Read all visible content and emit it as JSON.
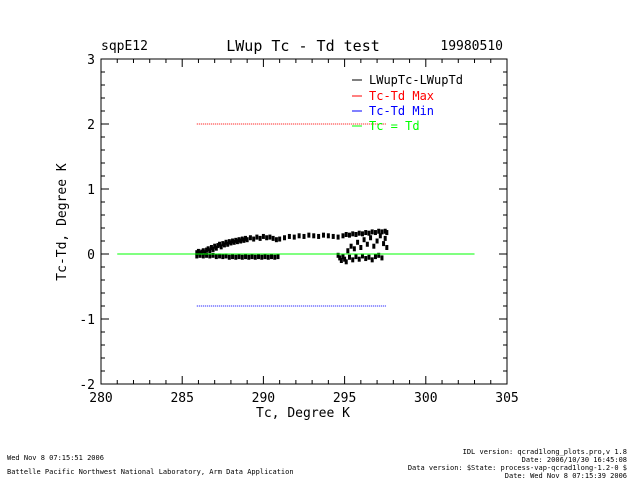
{
  "header": {
    "site": "sqpE12",
    "date": "19980510"
  },
  "chart_data": {
    "type": "scatter",
    "title": "LWup Tc - Td test",
    "xlabel": "Tc, Degree K",
    "ylabel": "Tc-Td, Degree K",
    "xlim": [
      280,
      305
    ],
    "ylim": [
      -2,
      3
    ],
    "x_ticks": [
      280,
      285,
      290,
      295,
      300,
      305
    ],
    "y_ticks": [
      -2,
      -1,
      0,
      1,
      2,
      3
    ],
    "colors": {
      "data": "#000000",
      "max": "#ff0000",
      "min": "#0000ff",
      "zero": "#00ff00"
    },
    "legend": {
      "placement": "top-right",
      "entries": [
        {
          "label": "LWupTc-LWupTd",
          "color": "#000000"
        },
        {
          "label": "Tc-Td Max",
          "color": "#ff0000"
        },
        {
          "label": "Tc-Td Min",
          "color": "#0000ff"
        },
        {
          "label": "Tc = Td",
          "color": "#00ff00"
        }
      ]
    },
    "series": [
      {
        "name": "LWupTc-LWupTd",
        "style": "points",
        "color": "#000000",
        "points": [
          [
            285.9,
            0.02
          ],
          [
            286.0,
            0.04
          ],
          [
            286.1,
            0.01
          ],
          [
            286.2,
            0.03
          ],
          [
            286.3,
            0.05
          ],
          [
            286.4,
            0.02
          ],
          [
            286.5,
            0.06
          ],
          [
            286.6,
            0.08
          ],
          [
            286.7,
            0.05
          ],
          [
            286.8,
            0.1
          ],
          [
            286.9,
            0.07
          ],
          [
            287.0,
            0.12
          ],
          [
            287.1,
            0.09
          ],
          [
            287.2,
            0.13
          ],
          [
            287.3,
            0.15
          ],
          [
            287.4,
            0.11
          ],
          [
            287.5,
            0.16
          ],
          [
            287.6,
            0.14
          ],
          [
            287.7,
            0.18
          ],
          [
            287.8,
            0.15
          ],
          [
            287.9,
            0.19
          ],
          [
            288.0,
            0.17
          ],
          [
            288.1,
            0.2
          ],
          [
            288.2,
            0.18
          ],
          [
            288.3,
            0.21
          ],
          [
            288.4,
            0.19
          ],
          [
            288.5,
            0.22
          ],
          [
            288.6,
            0.2
          ],
          [
            288.7,
            0.23
          ],
          [
            288.8,
            0.21
          ],
          [
            288.9,
            0.24
          ],
          [
            289.0,
            0.22
          ],
          [
            289.2,
            0.25
          ],
          [
            289.4,
            0.23
          ],
          [
            289.6,
            0.26
          ],
          [
            289.8,
            0.24
          ],
          [
            290.0,
            0.27
          ],
          [
            290.2,
            0.25
          ],
          [
            290.4,
            0.26
          ],
          [
            290.6,
            0.24
          ],
          [
            290.8,
            0.22
          ],
          [
            291.0,
            0.23
          ],
          [
            291.3,
            0.25
          ],
          [
            291.6,
            0.27
          ],
          [
            291.9,
            0.26
          ],
          [
            292.2,
            0.28
          ],
          [
            292.5,
            0.27
          ],
          [
            292.8,
            0.29
          ],
          [
            293.1,
            0.28
          ],
          [
            293.4,
            0.27
          ],
          [
            293.7,
            0.29
          ],
          [
            294.0,
            0.28
          ],
          [
            294.3,
            0.27
          ],
          [
            294.6,
            0.26
          ],
          [
            294.9,
            0.28
          ],
          [
            295.1,
            0.3
          ],
          [
            295.3,
            0.29
          ],
          [
            295.5,
            0.31
          ],
          [
            295.7,
            0.3
          ],
          [
            295.9,
            0.32
          ],
          [
            296.1,
            0.31
          ],
          [
            296.3,
            0.33
          ],
          [
            296.5,
            0.32
          ],
          [
            296.7,
            0.34
          ],
          [
            296.9,
            0.33
          ],
          [
            297.1,
            0.35
          ],
          [
            297.3,
            0.34
          ],
          [
            297.5,
            0.35
          ],
          [
            297.6,
            0.33
          ],
          [
            285.9,
            -0.03
          ],
          [
            286.1,
            -0.02
          ],
          [
            286.3,
            -0.03
          ],
          [
            286.5,
            -0.02
          ],
          [
            286.7,
            -0.03
          ],
          [
            286.9,
            -0.02
          ],
          [
            287.1,
            -0.04
          ],
          [
            287.3,
            -0.03
          ],
          [
            287.5,
            -0.04
          ],
          [
            287.7,
            -0.03
          ],
          [
            287.9,
            -0.05
          ],
          [
            288.1,
            -0.04
          ],
          [
            288.3,
            -0.05
          ],
          [
            288.5,
            -0.04
          ],
          [
            288.7,
            -0.05
          ],
          [
            288.9,
            -0.04
          ],
          [
            289.1,
            -0.05
          ],
          [
            289.3,
            -0.04
          ],
          [
            289.5,
            -0.05
          ],
          [
            289.7,
            -0.04
          ],
          [
            289.9,
            -0.05
          ],
          [
            290.1,
            -0.04
          ],
          [
            290.3,
            -0.05
          ],
          [
            290.5,
            -0.04
          ],
          [
            290.7,
            -0.05
          ],
          [
            290.9,
            -0.04
          ],
          [
            294.6,
            -0.02
          ],
          [
            294.7,
            -0.06
          ],
          [
            294.8,
            -0.1
          ],
          [
            294.9,
            -0.04
          ],
          [
            295.0,
            -0.08
          ],
          [
            295.1,
            -0.12
          ],
          [
            295.3,
            -0.05
          ],
          [
            295.5,
            -0.09
          ],
          [
            295.7,
            -0.04
          ],
          [
            295.9,
            -0.08
          ],
          [
            296.1,
            -0.03
          ],
          [
            296.3,
            -0.07
          ],
          [
            296.5,
            -0.05
          ],
          [
            296.7,
            -0.09
          ],
          [
            296.9,
            -0.04
          ],
          [
            297.1,
            -0.02
          ],
          [
            297.3,
            -0.06
          ],
          [
            295.2,
            0.05
          ],
          [
            295.4,
            0.12
          ],
          [
            295.6,
            0.08
          ],
          [
            295.8,
            0.18
          ],
          [
            296.0,
            0.1
          ],
          [
            296.2,
            0.22
          ],
          [
            296.4,
            0.15
          ],
          [
            296.6,
            0.25
          ],
          [
            296.8,
            0.12
          ],
          [
            297.0,
            0.2
          ],
          [
            297.2,
            0.28
          ],
          [
            297.4,
            0.16
          ],
          [
            297.5,
            0.24
          ],
          [
            297.6,
            0.1
          ]
        ]
      },
      {
        "name": "Tc-Td Max",
        "style": "dotted-line",
        "color": "#ff0000",
        "x": [
          285.9,
          297.6
        ],
        "y": [
          2.0,
          2.0
        ]
      },
      {
        "name": "Tc-Td Min",
        "style": "dotted-line",
        "color": "#0000ff",
        "x": [
          285.9,
          297.6
        ],
        "y": [
          -0.8,
          -0.8
        ]
      },
      {
        "name": "Tc = Td",
        "style": "line",
        "color": "#00ff00",
        "x": [
          281,
          303
        ],
        "y": [
          0,
          0
        ]
      }
    ]
  },
  "footer": {
    "run_date": "Wed Nov  8 07:15:51 2006",
    "org": "Battelle Pacific Northwest National Laboratory, Arm Data Application",
    "idl_version": "IDL version: qcrad1long_plots.pro,v 1.8",
    "file_date": "Date: 2006/10/30 16:45:08",
    "data_version": "Data version: $State: process-vap-qcrad1long-1.2-0 $",
    "stamp_date": "Date: Wed Nov  8 07:15:39 2006"
  }
}
